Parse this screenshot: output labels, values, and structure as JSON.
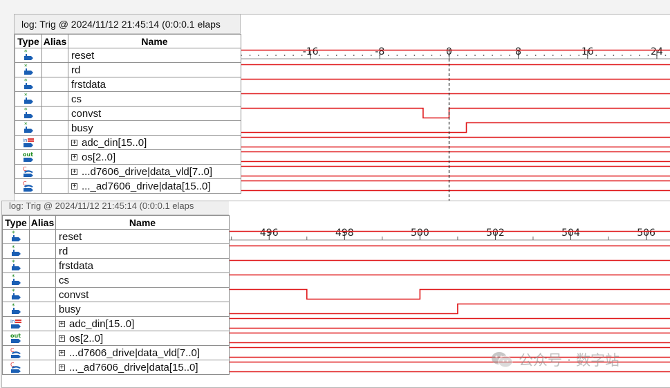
{
  "panel_top": {
    "title": "log: Trig @ 2024/11/12 21:45:14 (0:0:0.1 elaps",
    "headers": {
      "type": "Type",
      "alias": "Alias",
      "name": "Name"
    },
    "ticks": [
      "-16",
      "-8",
      "0",
      "8",
      "16",
      "24"
    ],
    "tick_values": [
      -16,
      -8,
      0,
      8,
      16,
      24
    ],
    "axis_range": [
      -24,
      25.6
    ],
    "trigger_at": 0,
    "signals": [
      {
        "name": "reset",
        "icon": "input-pin-icon",
        "bus": false,
        "wave": {
          "type": "high"
        }
      },
      {
        "name": "rd",
        "icon": "input-pin-icon",
        "bus": false,
        "wave": {
          "type": "high"
        }
      },
      {
        "name": "frstdata",
        "icon": "input-pin-icon",
        "bus": false,
        "wave": {
          "type": "high"
        }
      },
      {
        "name": "cs",
        "icon": "input-pin-icon",
        "bus": false,
        "wave": {
          "type": "high"
        }
      },
      {
        "name": "convst",
        "icon": "input-pin-icon",
        "bus": false,
        "wave": {
          "type": "pulse_low",
          "start": -3,
          "end": 0
        }
      },
      {
        "name": "busy",
        "icon": "input-pin-icon",
        "bus": false,
        "wave": {
          "type": "rise",
          "at": 2
        }
      },
      {
        "name": "adc_din[15..0]",
        "icon": "input-bus-icon",
        "bus": true,
        "wave": {
          "type": "bus"
        }
      },
      {
        "name": "os[2..0]",
        "icon": "output-bus-icon",
        "bus": true,
        "wave": {
          "type": "bus"
        }
      },
      {
        "name": "...d7606_drive|data_vld[7..0]",
        "icon": "combinational-node-icon",
        "bus": true,
        "wave": {
          "type": "bus"
        }
      },
      {
        "name": "..._ad7606_drive|data[15..0]",
        "icon": "combinational-node-icon",
        "bus": true,
        "wave": {
          "type": "bus"
        }
      }
    ]
  },
  "panel_bottom": {
    "title": "log: Trig @ 2024/11/12 21:45:14 (0:0:0.1 elaps",
    "headers": {
      "type": "Type",
      "alias": "Alias",
      "name": "Name"
    },
    "ticks": [
      "496",
      "498",
      "500",
      "502",
      "504",
      "506"
    ],
    "tick_values": [
      496,
      498,
      500,
      502,
      504,
      506
    ],
    "axis_range": [
      494.95,
      506.65
    ],
    "signals": [
      {
        "name": "reset",
        "icon": "input-pin-icon",
        "bus": false,
        "wave": {
          "type": "high"
        }
      },
      {
        "name": "rd",
        "icon": "input-pin-icon",
        "bus": false,
        "wave": {
          "type": "high"
        }
      },
      {
        "name": "frstdata",
        "icon": "input-pin-icon",
        "bus": false,
        "wave": {
          "type": "high"
        }
      },
      {
        "name": "cs",
        "icon": "input-pin-icon",
        "bus": false,
        "wave": {
          "type": "high"
        }
      },
      {
        "name": "convst",
        "icon": "input-pin-icon",
        "bus": false,
        "wave": {
          "type": "pulse_low",
          "start": 497,
          "end": 500
        }
      },
      {
        "name": "busy",
        "icon": "input-pin-icon",
        "bus": false,
        "wave": {
          "type": "rise",
          "at": 501
        }
      },
      {
        "name": "adc_din[15..0]",
        "icon": "input-bus-icon",
        "bus": true,
        "wave": {
          "type": "bus"
        }
      },
      {
        "name": "os[2..0]",
        "icon": "output-bus-icon",
        "bus": true,
        "wave": {
          "type": "bus"
        }
      },
      {
        "name": "...d7606_drive|data_vld[7..0]",
        "icon": "combinational-node-icon",
        "bus": true,
        "wave": {
          "type": "bus"
        }
      },
      {
        "name": "..._ad7606_drive|data[15..0]",
        "icon": "combinational-node-icon",
        "bus": true,
        "wave": {
          "type": "bus"
        }
      }
    ]
  },
  "watermark": "公众号 · 数字站",
  "colors": {
    "waveform": "#e0191b",
    "trigger_line": "#222222",
    "grid": "#8d8d8d"
  }
}
